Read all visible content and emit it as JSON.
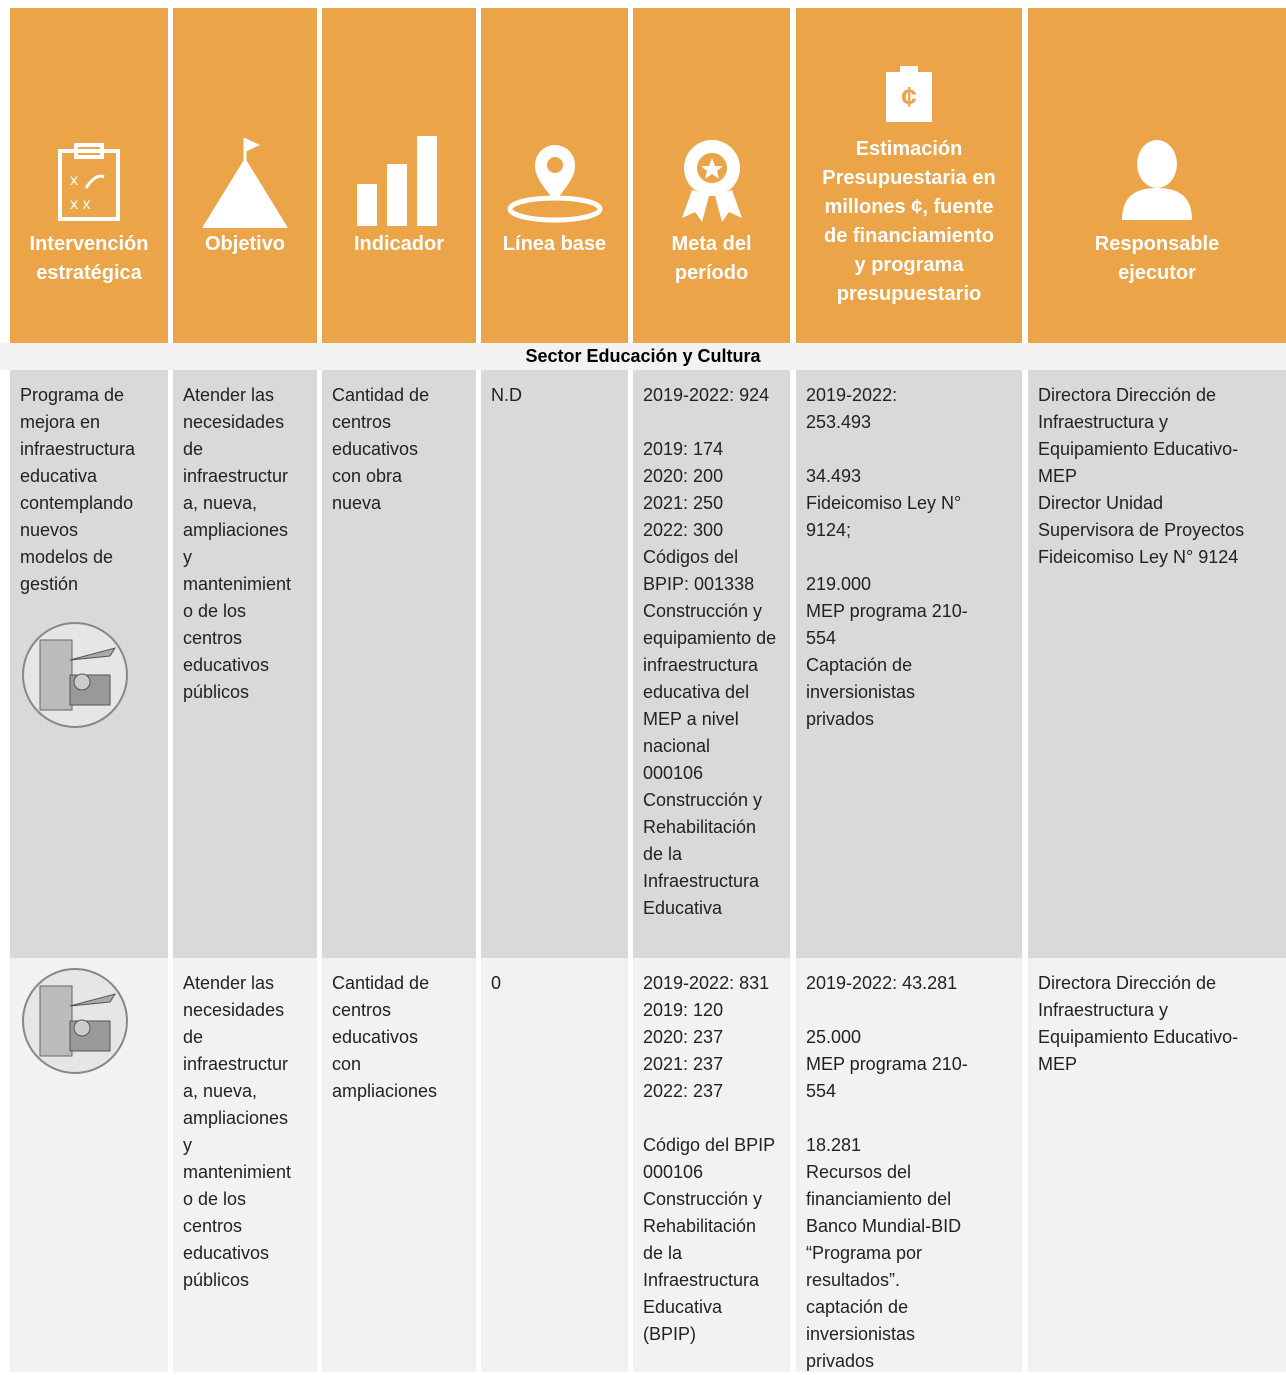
{
  "header": {
    "columns": [
      [
        "Intervención",
        "estratégica"
      ],
      [
        "Objetivo"
      ],
      [
        "Indicador"
      ],
      [
        "Línea base"
      ],
      [
        "Meta del",
        "período"
      ],
      [
        "Estimación",
        "Presupuestaria en",
        "millones ¢, fuente",
        "de financiamiento",
        "y programa",
        "presupuestario"
      ],
      [
        "Responsable",
        "ejecutor"
      ]
    ]
  },
  "sector": "Sector Educación y Cultura",
  "table": {
    "rows": [
      [
        [
          [
            "Programa de",
            "mejora en",
            "infraestructura",
            "educativa",
            "contemplando",
            "nuevos",
            "modelos de",
            "gestión"
          ]
        ],
        [
          [
            "Atender las",
            "necesidades",
            "de",
            "infraestructur",
            "a, nueva,",
            "ampliaciones",
            "y",
            "mantenimient",
            "o de los",
            "centros",
            "educativos",
            "públicos"
          ]
        ],
        [
          [
            "Cantidad de",
            "centros",
            "educativos",
            "con obra",
            "nueva"
          ]
        ],
        [
          [
            "N.D"
          ]
        ],
        [
          [
            "2019-2022: 924"
          ],
          [
            "2019: 174",
            "2020: 200",
            "2021: 250",
            "2022: 300",
            "Códigos del",
            "BPIP: 001338",
            "Construcción y",
            "equipamiento de",
            "infraestructura",
            "educativa del",
            "MEP a nivel",
            "nacional",
            "000106",
            "Construcción y",
            "Rehabilitación",
            "de la",
            "Infraestructura",
            "Educativa"
          ]
        ],
        [
          [
            "2019-2022:",
            "253.493"
          ],
          [
            "34.493",
            "Fideicomiso Ley N°",
            "9124;"
          ],
          [
            "219.000",
            "MEP programa 210-",
            "554",
            "Captación de",
            "inversionistas",
            "privados"
          ]
        ],
        [
          [
            "Directora Dirección de",
            "Infraestructura y",
            "Equipamiento Educativo-",
            "MEP",
            "Director Unidad",
            "Supervisora de Proyectos",
            "Fideicomiso Ley N° 9124"
          ]
        ]
      ],
      [
        [],
        [
          [
            "Atender las",
            "necesidades",
            "de",
            "infraestructur",
            "a, nueva,",
            "ampliaciones",
            "y",
            "mantenimient",
            "o de los",
            "centros",
            "educativos",
            "públicos"
          ]
        ],
        [
          [
            "Cantidad de",
            "centros",
            "educativos",
            "con",
            "ampliaciones"
          ]
        ],
        [
          [
            "0"
          ]
        ],
        [
          [
            "2019-2022: 831",
            "2019: 120",
            "2020:  237",
            "2021:  237",
            "2022:  237"
          ],
          [
            "Código del BPIP",
            "000106",
            "Construcción y",
            "Rehabilitación",
            "de la",
            "Infraestructura",
            "Educativa",
            "(BPIP)"
          ]
        ],
        [
          [
            "2019-2022: 43.281"
          ],
          [
            "25.000",
            "MEP programa 210-",
            "554"
          ],
          [
            "18.281",
            "Recursos del",
            "financiamiento del",
            "Banco Mundial-BID",
            "“Programa por",
            "resultados”.",
            "captación de",
            "inversionistas",
            "privados"
          ]
        ],
        [
          [
            "Directora Dirección de",
            "Infraestructura y",
            "Equipamiento Educativo-",
            "MEP"
          ]
        ]
      ]
    ]
  }
}
